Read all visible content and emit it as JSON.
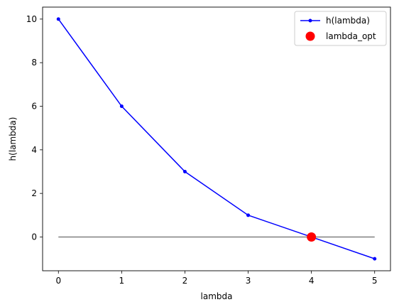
{
  "chart_data": {
    "type": "line",
    "title": "",
    "xlabel": "lambda",
    "ylabel": "h(lambda)",
    "xlim": [
      -0.25,
      5.25
    ],
    "ylim": [
      -1.55,
      10.55
    ],
    "xticks": [
      0,
      1,
      2,
      3,
      4,
      5
    ],
    "yticks": [
      0,
      2,
      4,
      6,
      8,
      10
    ],
    "grid": false,
    "legend_position": "top-right",
    "series": [
      {
        "name": "h(lambda)",
        "color": "#0000ff",
        "marker": "dot",
        "x": [
          0,
          1,
          2,
          3,
          4,
          5
        ],
        "y": [
          10,
          6,
          3,
          1,
          0,
          -1
        ]
      },
      {
        "name": "lambda_opt",
        "color": "#ff0000",
        "marker": "large-circle",
        "x": [
          4
        ],
        "y": [
          0
        ]
      }
    ],
    "reference_line": {
      "y": 0,
      "x_from": 0,
      "x_to": 5,
      "color": "#808080"
    }
  }
}
